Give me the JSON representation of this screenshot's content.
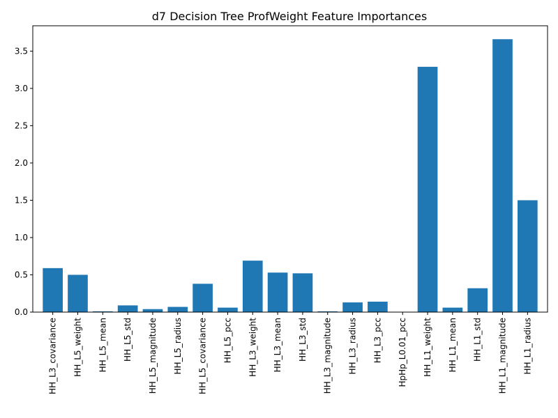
{
  "chart_data": {
    "type": "bar",
    "title": "d7 Decision Tree ProfWeight Feature Importances",
    "xlabel": "",
    "ylabel": "",
    "ylim": [
      0,
      3.84
    ],
    "yticks": [
      0.0,
      0.5,
      1.0,
      1.5,
      2.0,
      2.5,
      3.0,
      3.5
    ],
    "grid": false,
    "bar_color": "#1f77b4",
    "categories": [
      "HH_L3_covariance",
      "HH_L5_weight",
      "HH_L5_mean",
      "HH_L5_std",
      "HH_L5_magnitude",
      "HH_L5_radius",
      "HH_L5_covariance",
      "HH_L5_pcc",
      "HH_L3_weight",
      "HH_L3_mean",
      "HH_L3_std",
      "HH_L3_magnitude",
      "HH_L3_radius",
      "HH_L3_pcc",
      "HpHp_L0.01_pcc",
      "HH_L1_weight",
      "HH_L1_mean",
      "HH_L1_std",
      "HH_L1_magnitude",
      "HH_L1_radius"
    ],
    "values": [
      0.59,
      0.5,
      0.01,
      0.09,
      0.04,
      0.07,
      0.38,
      0.06,
      0.69,
      0.53,
      0.52,
      0.01,
      0.13,
      0.14,
      0.0,
      3.29,
      0.06,
      0.32,
      3.66,
      1.5
    ]
  }
}
